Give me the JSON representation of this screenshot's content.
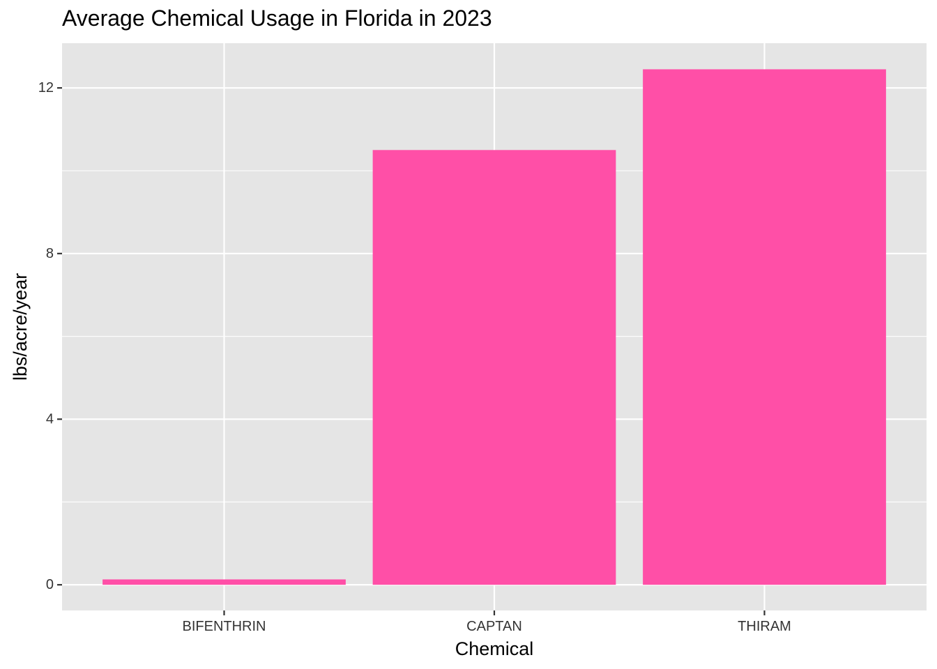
{
  "chart_data": {
    "type": "bar",
    "title": "Average Chemical Usage in Florida in 2023",
    "xlabel": "Chemical",
    "ylabel": "lbs/acre/year",
    "categories": [
      "BIFENTHRIN",
      "CAPTAN",
      "THIRAM"
    ],
    "values": [
      0.13,
      10.5,
      12.45
    ],
    "ylim": [
      -0.62,
      13.08
    ],
    "yticks": [
      0,
      4,
      8,
      12
    ],
    "ytick_labels": [
      "0",
      "4",
      "8",
      "12"
    ],
    "grid": true,
    "legend": "none",
    "colors": {
      "bar": "#FF4FA7",
      "panel": "#E5E5E5",
      "grid": "#FFFFFF",
      "tick": "#333333",
      "text": "#000000"
    }
  }
}
